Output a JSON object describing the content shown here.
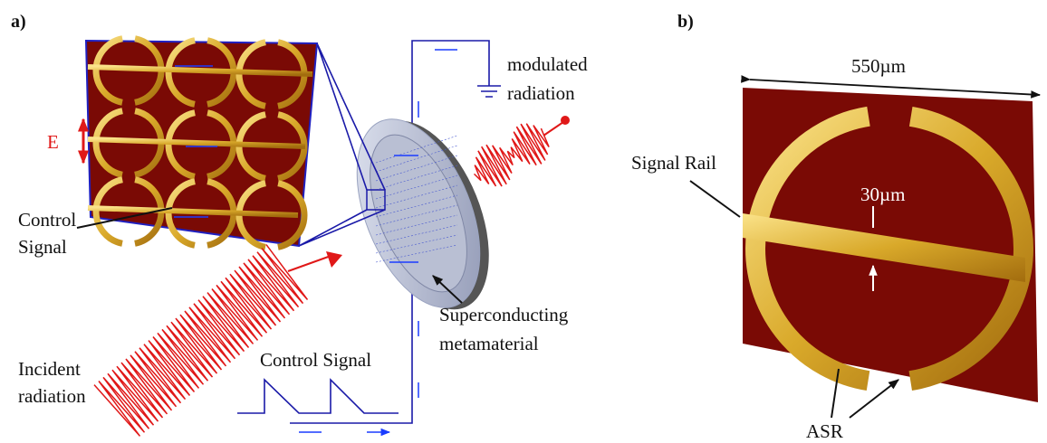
{
  "panel_a": {
    "label": "a)",
    "field": "E",
    "control_label": [
      "Control",
      "Signal"
    ],
    "incident_label": [
      "Incident",
      "radiation"
    ],
    "signal_label": "Control Signal",
    "output_label": [
      "modulated",
      "radiation"
    ],
    "material_label": [
      "Superconducting",
      "metamaterial"
    ]
  },
  "panel_b": {
    "label": "b)",
    "width_label": "550µm",
    "rail_label": "Signal Rail",
    "gap_label": "30µm",
    "resonator_label": "ASR"
  }
}
